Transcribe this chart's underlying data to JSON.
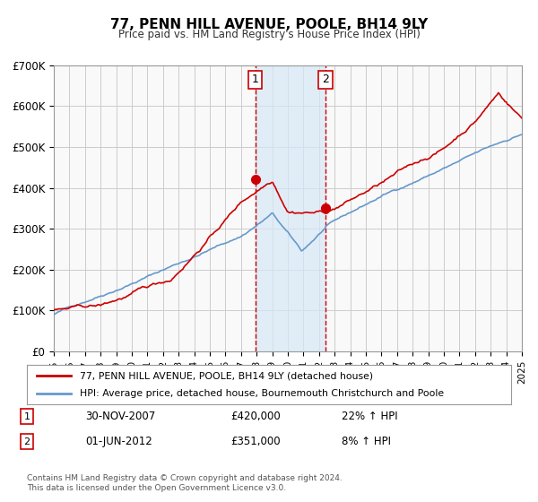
{
  "title": "77, PENN HILL AVENUE, POOLE, BH14 9LY",
  "subtitle": "Price paid vs. HM Land Registry's House Price Index (HPI)",
  "ylim": [
    0,
    700000
  ],
  "yticks": [
    0,
    100000,
    200000,
    300000,
    400000,
    500000,
    600000,
    700000
  ],
  "ytick_labels": [
    "£0",
    "£100K",
    "£200K",
    "£300K",
    "£400K",
    "£500K",
    "£600K",
    "£700K"
  ],
  "line1_color": "#cc0000",
  "line2_color": "#6699cc",
  "marker_color": "#cc0000",
  "shade_color": "#d6e8f7",
  "vline_color": "#cc0000",
  "grid_color": "#cccccc",
  "background_color": "#f9f9f9",
  "legend_entry1": "77, PENN HILL AVENUE, POOLE, BH14 9LY (detached house)",
  "legend_entry2": "HPI: Average price, detached house, Bournemouth Christchurch and Poole",
  "sale1_date": 2007.92,
  "sale1_price": 420000,
  "sale1_label": "1",
  "sale2_date": 2012.42,
  "sale2_price": 351000,
  "sale2_label": "2",
  "annotation1_date": "30-NOV-2007",
  "annotation1_price": "£420,000",
  "annotation1_hpi": "22% ↑ HPI",
  "annotation2_date": "01-JUN-2012",
  "annotation2_price": "£351,000",
  "annotation2_hpi": "8% ↑ HPI",
  "footnote": "Contains HM Land Registry data © Crown copyright and database right 2024.\nThis data is licensed under the Open Government Licence v3.0."
}
